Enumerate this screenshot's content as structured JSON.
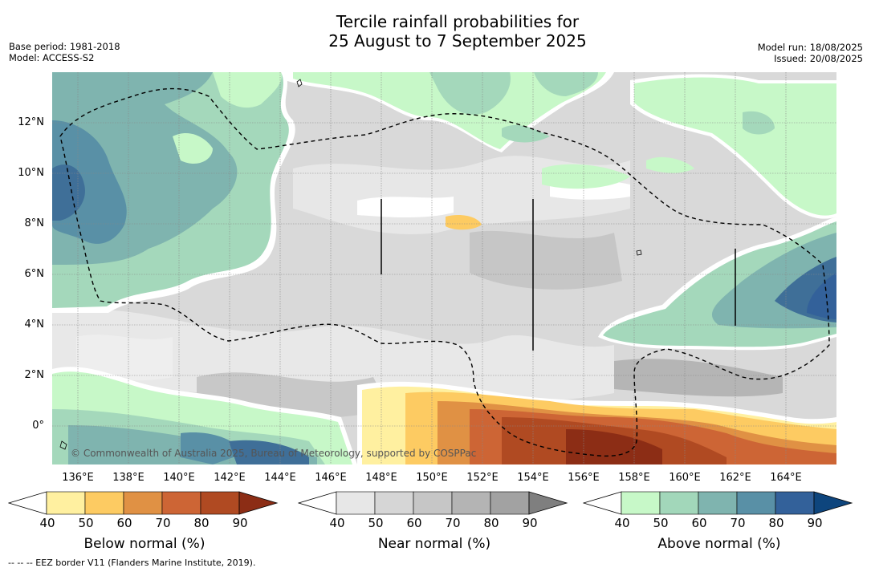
{
  "title_line1": "Tercile rainfall probabilities for",
  "title_line2": "25 August to 7 September 2025",
  "base_period": "Base period: 1981-2018",
  "model": "Model: ACCESS-S2",
  "model_run": "Model run: 18/08/2025",
  "issued": "Issued: 20/08/2025",
  "x_ticks": [
    "136°E",
    "138°E",
    "140°E",
    "142°E",
    "144°E",
    "146°E",
    "148°E",
    "150°E",
    "152°E",
    "154°E",
    "156°E",
    "158°E",
    "160°E",
    "162°E",
    "164°E"
  ],
  "y_ticks": [
    "12°N",
    "10°N",
    "8°N",
    "6°N",
    "4°N",
    "2°N",
    "0°"
  ],
  "copyright": "© Commonwealth of Australia 2025, Bureau of Meteorology, supported by COSPPac",
  "colorbars": [
    {
      "name": "Below normal (%)",
      "colors": [
        "#ffffff",
        "#fff0a0",
        "#fdcb62",
        "#e09144",
        "#cd6535",
        "#b04a22",
        "#8c2d15"
      ],
      "ticks": [
        "40",
        "50",
        "60",
        "70",
        "80",
        "90"
      ]
    },
    {
      "name": "Near normal (%)",
      "colors": [
        "#ffffff",
        "#e7e7e7",
        "#d6d6d6",
        "#c6c6c6",
        "#b4b4b4",
        "#a2a2a2",
        "#7f7f7f"
      ],
      "ticks": [
        "40",
        "50",
        "60",
        "70",
        "80",
        "90"
      ]
    },
    {
      "name": "Above normal (%)",
      "colors": [
        "#ffffff",
        "#c7f8c8",
        "#a2d7ba",
        "#7fb4af",
        "#5990a6",
        "#33619a",
        "#0e457d"
      ],
      "ticks": [
        "40",
        "50",
        "60",
        "70",
        "80",
        "90"
      ]
    }
  ],
  "footnote": "--  --  -- EEZ border V11 (Flanders Marine Institute, 2019)."
}
